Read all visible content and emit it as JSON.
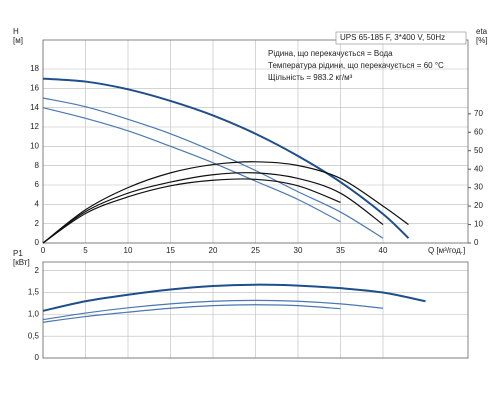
{
  "chart_data": [
    {
      "type": "line",
      "title": "UPS 65-185 F, 3*400 V, 50Hz",
      "notes": [
        "Рідина, що перекачується = Вода",
        "Температура рідини, що перекачується = 60 °C",
        "Щільність = 983.2 кг/м³"
      ],
      "ylabel": [
        "H",
        "[м]"
      ],
      "y2label": [
        "eta",
        "[%]"
      ],
      "xlabel": "Q [м³/год.]",
      "x": [
        0,
        5,
        10,
        15,
        20,
        25,
        30,
        35,
        40,
        43
      ],
      "xlim": [
        0,
        50
      ],
      "xticks": [
        0,
        5,
        10,
        15,
        20,
        25,
        30,
        35,
        40
      ],
      "ylim": [
        0,
        21
      ],
      "yticks": [
        0,
        2,
        4,
        6,
        8,
        10,
        12,
        14,
        16,
        18
      ],
      "y2lim": [
        0,
        110
      ],
      "y2ticks": [
        0,
        10,
        20,
        30,
        40,
        50,
        60,
        70
      ],
      "grid": true,
      "series": [
        {
          "color": "#1f4e8c",
          "values": [
            17,
            16.7,
            15.9,
            14.7,
            13.2,
            11.3,
            9,
            6.3,
            3,
            0.5
          ]
        },
        {
          "color": "#4a78b0",
          "values": [
            15,
            14.1,
            12.8,
            11.3,
            9.5,
            7.5,
            5.3,
            3.2,
            0.5,
            null
          ]
        },
        {
          "color": "#4a78b0",
          "values": [
            14,
            12.9,
            11.6,
            10,
            8.3,
            6.4,
            4.5,
            2.2,
            null,
            null
          ]
        },
        {
          "color": "#111111",
          "axis": "y2",
          "values": [
            0,
            18,
            30,
            38,
            42.5,
            44,
            42,
            35,
            20,
            10
          ]
        },
        {
          "color": "#111111",
          "axis": "y2",
          "values": [
            0,
            17,
            27,
            33,
            37,
            38,
            35,
            27,
            10,
            null
          ]
        },
        {
          "color": "#111111",
          "axis": "y2",
          "values": [
            0,
            16,
            25,
            31,
            34,
            34.5,
            31,
            22,
            null,
            null
          ]
        }
      ]
    },
    {
      "type": "line",
      "ylabel": [
        "P1",
        "[кВт]"
      ],
      "x": [
        0,
        5,
        10,
        15,
        20,
        25,
        30,
        35,
        40,
        45
      ],
      "xlim": [
        0,
        50
      ],
      "ylim": [
        0,
        2.2
      ],
      "yticks": [
        0,
        {
          "value": 0.5,
          "label": "0,5"
        },
        {
          "value": 1,
          "label": "1,0"
        },
        {
          "value": 1.5,
          "label": "1,5"
        },
        2
      ],
      "grid": true,
      "series": [
        {
          "color": "#1f4e8c",
          "values": [
            1.08,
            1.3,
            1.45,
            1.57,
            1.65,
            1.68,
            1.66,
            1.6,
            1.5,
            1.3
          ]
        },
        {
          "color": "#4a78b0",
          "values": [
            0.88,
            1.03,
            1.15,
            1.24,
            1.3,
            1.32,
            1.3,
            1.24,
            1.14,
            null
          ]
        },
        {
          "color": "#4a78b0",
          "values": [
            0.82,
            0.95,
            1.05,
            1.14,
            1.2,
            1.22,
            1.2,
            1.13,
            null,
            null
          ]
        }
      ]
    }
  ]
}
